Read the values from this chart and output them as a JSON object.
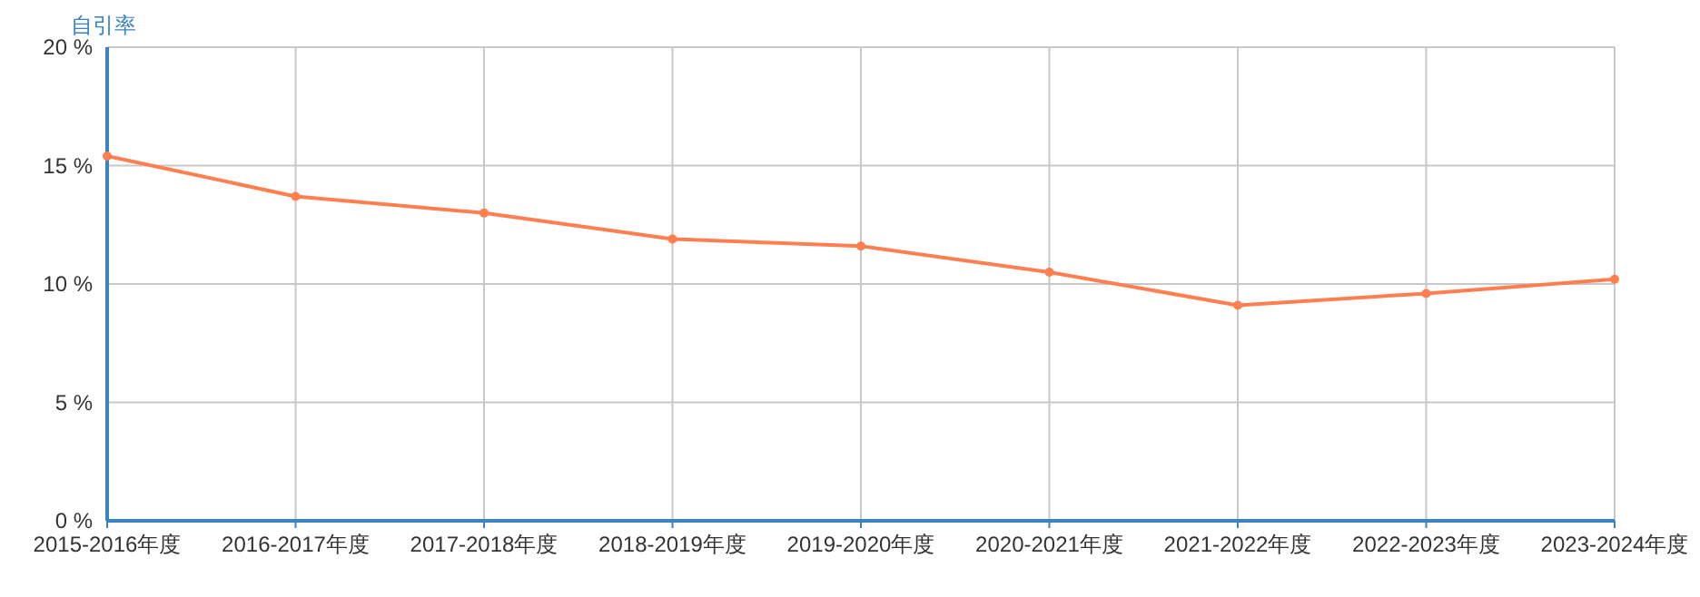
{
  "chart_data": {
    "type": "line",
    "ylabel": "自引率",
    "categories": [
      "2015-2016年度",
      "2016-2017年度",
      "2017-2018年度",
      "2018-2019年度",
      "2019-2020年度",
      "2020-2021年度",
      "2021-2022年度",
      "2022-2023年度",
      "2023-2024年度"
    ],
    "series": [
      {
        "color": "#ff7f50",
        "values": [
          15.4,
          13.7,
          13.0,
          11.9,
          11.6,
          10.5,
          9.1,
          9.6,
          10.2
        ]
      }
    ],
    "ylim": [
      0,
      20
    ],
    "yticks": [
      {
        "value": 0,
        "label": "0 %"
      },
      {
        "value": 5,
        "label": "5 %"
      },
      {
        "value": 10,
        "label": "10 %"
      },
      {
        "value": 15,
        "label": "15 %"
      },
      {
        "value": 20,
        "label": "20 %"
      }
    ],
    "grid": true,
    "marker": "circle",
    "line_style": "solid"
  }
}
